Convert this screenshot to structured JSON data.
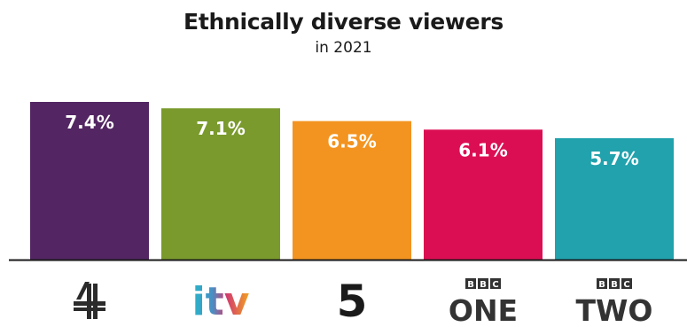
{
  "title": "Ethnically diverse viewers",
  "subtitle": "in 2021",
  "chart_data": {
    "type": "bar",
    "title": "Ethnically diverse viewers",
    "subtitle": "in 2021",
    "xlabel": "",
    "ylabel": "",
    "categories": [
      "Channel 4",
      "ITV",
      "Channel 5",
      "BBC One",
      "BBC Two"
    ],
    "values": [
      7.4,
      7.1,
      6.5,
      6.1,
      5.7
    ],
    "labels": [
      "7.4%",
      "7.1%",
      "6.5%",
      "6.1%",
      "5.7%"
    ],
    "colors": [
      "#532663",
      "#7a9a2d",
      "#f39420",
      "#dc0e53",
      "#21a2ad"
    ],
    "ylim": [
      0,
      7.4
    ],
    "grid": false,
    "legend": "none"
  },
  "logos": {
    "channel4": {
      "icon": "channel-4-logo"
    },
    "itv": {
      "text": "itv",
      "icon": "itv-logo"
    },
    "channel5": {
      "text": "5",
      "icon": "channel-5-logo"
    },
    "bbc_one": {
      "bbc": [
        "B",
        "B",
        "C"
      ],
      "name": "ONE",
      "icon": "bbc-one-logo"
    },
    "bbc_two": {
      "bbc": [
        "B",
        "B",
        "C"
      ],
      "name": "TWO",
      "icon": "bbc-two-logo"
    }
  }
}
